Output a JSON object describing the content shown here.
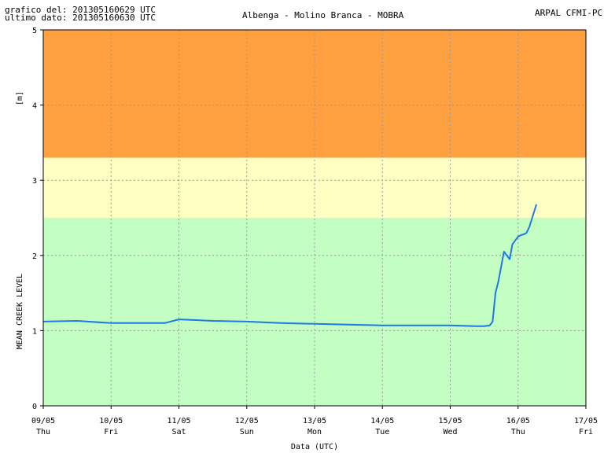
{
  "header": {
    "chart_date_line": "grafico del: 201305160629 UTC",
    "last_data_line": "ultimo dato: 201305160630 UTC",
    "station": "Albenga - Molino Branca - MOBRA",
    "agency": "ARPAL CFMI-PC"
  },
  "colors": {
    "band_low": "#c3ffc3",
    "band_mid": "#ffffc3",
    "band_high": "#ffa040",
    "series": "#1e78e6",
    "grid": "#999999"
  },
  "chart_data": {
    "type": "line",
    "xlabel": "Data (UTC)",
    "ylabel": "MEAN CREEK LEVEL",
    "yunit": "[m]",
    "ylim": [
      0,
      5
    ],
    "yticks": [
      0,
      1,
      2,
      3,
      4,
      5
    ],
    "xlim": [
      "2013-05-09 00:00",
      "2013-05-17 00:00"
    ],
    "xticks": [
      {
        "date": "09/05",
        "day": "Thu"
      },
      {
        "date": "10/05",
        "day": "Fri"
      },
      {
        "date": "11/05",
        "day": "Sat"
      },
      {
        "date": "12/05",
        "day": "Sun"
      },
      {
        "date": "13/05",
        "day": "Mon"
      },
      {
        "date": "14/05",
        "day": "Tue"
      },
      {
        "date": "15/05",
        "day": "Wed"
      },
      {
        "date": "16/05",
        "day": "Thu"
      },
      {
        "date": "17/05",
        "day": "Fri"
      }
    ],
    "grid": true,
    "bands": [
      {
        "from": 0,
        "to": 2.5
      },
      {
        "from": 2.5,
        "to": 3.3
      },
      {
        "from": 3.3,
        "to": 5
      }
    ],
    "series": [
      {
        "x": [
          "2013-05-09 00:00",
          "2013-05-09 12:00",
          "2013-05-10 00:00",
          "2013-05-10 12:00",
          "2013-05-10 19:00",
          "2013-05-11 00:00",
          "2013-05-11 06:00",
          "2013-05-11 12:00",
          "2013-05-12 00:00",
          "2013-05-12 12:00",
          "2013-05-13 00:00",
          "2013-05-13 12:00",
          "2013-05-14 00:00",
          "2013-05-14 12:00",
          "2013-05-15 00:00",
          "2013-05-15 09:00",
          "2013-05-15 12:00",
          "2013-05-15 14:00",
          "2013-05-15 15:00",
          "2013-05-15 16:00",
          "2013-05-15 17:00",
          "2013-05-15 19:00",
          "2013-05-15 20:00",
          "2013-05-15 21:00",
          "2013-05-15 22:00",
          "2013-05-15 23:00",
          "2013-05-16 00:00",
          "2013-05-16 01:00",
          "2013-05-16 02:00",
          "2013-05-16 03:00",
          "2013-05-16 04:00",
          "2013-05-16 05:00",
          "2013-05-16 06:00",
          "2013-05-16 06:30"
        ],
        "y": [
          1.12,
          1.13,
          1.1,
          1.1,
          1.1,
          1.15,
          1.14,
          1.13,
          1.12,
          1.1,
          1.09,
          1.08,
          1.07,
          1.07,
          1.07,
          1.06,
          1.06,
          1.07,
          1.12,
          1.5,
          1.65,
          2.05,
          2.0,
          1.95,
          2.15,
          2.2,
          2.25,
          2.27,
          2.28,
          2.3,
          2.38,
          2.5,
          2.62,
          2.68
        ]
      }
    ]
  }
}
